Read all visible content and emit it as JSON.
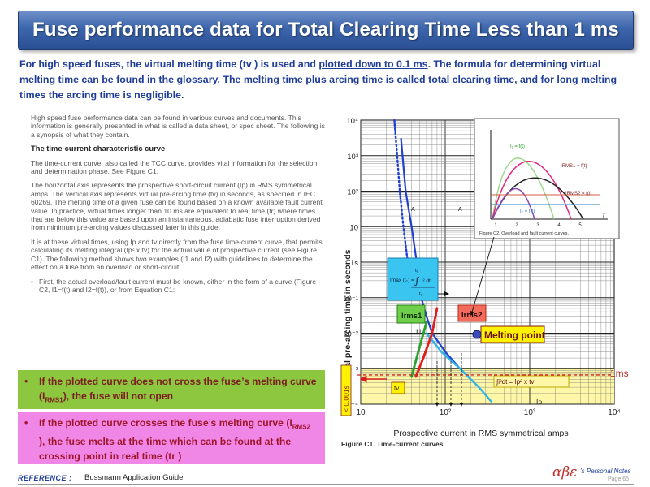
{
  "header": {
    "title": "Fuse performance data for  Total Clearing Time Less than 1 ms"
  },
  "intro": {
    "part1": "For high speed fuses, the virtual melting time (tv ) is used and ",
    "underlined": "plotted down to 0.1 ms",
    "part2": ". The formula for determining virtual melting time can be found in the glossary. The melting time plus arcing time is called total clearing time, and for long melting times the arcing time is negligible."
  },
  "document": {
    "p1": "High speed fuse performance data can be found in various curves and documents. This information is generally presented in what is called a data sheet, or spec sheet. The following is a synopsis of what they contain.",
    "heading": "The time-current characteristic curve",
    "p2": "The time-current curve, also called the TCC curve, provides vital information for the selection and determination phase. See Figure C1.",
    "p3": "The horizontal axis represents the prospective short-circuit current (Ip) in RMS symmetrical amps. The vertical axis represents virtual pre-arcing time (tv) in seconds, as specified in IEC 60269. The melting time of a given fuse can be found based on a known available fault current value. In practice, virtual times longer than 10 ms are equivalent to real time (tr) where times that are below this value are based upon an instantaneous, adiabatic fuse interruption derived from minimum pre-arcing values discussed later in this guide.",
    "p4": "It is at these virtual times, using Ip and tv directly from the fuse time-current curve, that permits calculating its melting integral (Ip² x tv) for the actual value of prospective current (see Figure C1). The following method shows two examples (I1 and I2) with guidelines to determine the effect on a fuse from an overload or short-circuit:",
    "bullet1": "First, the actual overload/fault current must be known, either in the form of a curve (Figure C2, I1=f(t) and I2=f(t)), or from Equation C1:"
  },
  "notes": {
    "green_a": "If the plotted curve does not cross the fuse’s melting curve (I",
    "green_sub": "RMS1",
    "green_b": "), the fuse will not open",
    "pink_a": "If the plotted curve crosses the fuse’s melting curve (I",
    "pink_sub": "RMS2",
    "pink_b": " ), the fuse melts at the time which can be found at the crossing point in real time (tr )"
  },
  "chart_data": {
    "type": "line",
    "title": "",
    "caption": "Figure C1. Time-current curves.",
    "xlabel": "Prospective current in RMS symmetrical amps",
    "ylabel": "Virtual pre-arcing time in seconds",
    "x_scale": "log",
    "y_scale": "log",
    "xlim": [
      10,
      10000
    ],
    "ylim": [
      0.0001,
      10000
    ],
    "x_ticks": [
      "10",
      "10²",
      "10³",
      "10⁴"
    ],
    "y_ticks": [
      "10⁴",
      "10³",
      "10²",
      "10",
      "1s",
      "10⁻¹",
      "10⁻²",
      "10⁻³",
      "10⁻⁴"
    ],
    "grid": true,
    "series": [
      {
        "name": "",
        "style": "blue solid",
        "x": [
          30,
          34,
          40,
          46,
          52,
          60,
          70,
          100,
          150,
          200
        ],
        "y": [
          3000,
          100,
          10,
          1,
          0.1,
          0.03,
          0.01,
          0.003,
          0.001,
          0.0005
        ]
      },
      {
        "name": "",
        "style": "blue dotted",
        "x": [
          25,
          27,
          29,
          32,
          36
        ],
        "y": [
          10000,
          1000,
          100,
          10,
          1
        ]
      },
      {
        "name": "",
        "style": "light blue dotted",
        "x": [
          60,
          90,
          150,
          250,
          350
        ],
        "y": [
          0.01,
          0.003,
          0.001,
          0.0003,
          0.00012
        ]
      },
      {
        "name": "Irms1",
        "style": "green dotted",
        "x": [
          40,
          48,
          60
        ],
        "y": [
          0.0006,
          0.003,
          0.02
        ]
      },
      {
        "name": "Irms2",
        "style": "red dotted",
        "x": [
          45,
          55,
          70,
          80
        ],
        "y": [
          0.0006,
          0.002,
          0.01,
          0.05
        ]
      }
    ],
    "annotations": {
      "irms1": "Irms1",
      "irms2": "Irms2",
      "i1": "I1",
      "melting_point": "Melting point",
      "tv": "tv",
      "ip": "Ip",
      "formula": "∫i²dt = Ip² x tv",
      "integral_label": "Imax (t₁) =",
      "lt_1ms": "< 0.001s",
      "one_ms": "1ms",
      "a_left": "A",
      "a_right": "A"
    },
    "inset": {
      "caption": "Figure C2. Overload and fault current curves.",
      "x_ticks": [
        "1",
        "2",
        "3",
        "4",
        "5"
      ],
      "label_t": "t",
      "curves": [
        "I₁ = f(t)",
        "IRMS1 = f(t)",
        "IRMS2 = f(t)",
        "I₂ = f(t)"
      ]
    }
  },
  "footer": {
    "reference_label": "REFERENCE :",
    "source": "Bussmann Application Guide",
    "logo": "αβε",
    "logo_sub": "’s Personal Notes",
    "page": "Page  65"
  },
  "colors": {
    "title_bar": "#3d66ad",
    "intro_text": "#1f3d99",
    "green_note": "#8dc63f",
    "pink_note": "#f087e6",
    "chart_yellow": "#fff7a8",
    "accent_red": "#c0302a"
  }
}
